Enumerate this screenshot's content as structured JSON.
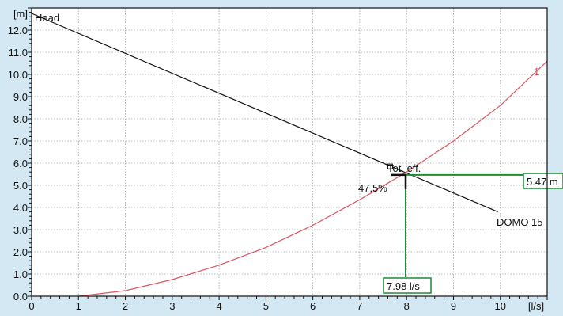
{
  "chart_data": {
    "type": "line",
    "xlabel": "[l/s]",
    "ylabel": "[m]",
    "xlim": [
      0,
      11
    ],
    "ylim": [
      0,
      13
    ],
    "x_ticks": [
      "0",
      "1",
      "2",
      "3",
      "4",
      "5",
      "6",
      "7",
      "8",
      "9",
      "10",
      "[l/s]"
    ],
    "y_ticks": [
      "0.0",
      "1.0",
      "2.0",
      "3.0",
      "4.0",
      "5.0",
      "6.0",
      "7.0",
      "8.0",
      "9.0",
      "10.0",
      "11.0",
      "12.0",
      "[m]"
    ],
    "grid": true,
    "series": [
      {
        "name": "Head",
        "color": "#111111",
        "x": [
          0,
          9.95
        ],
        "y": [
          12.75,
          3.8
        ]
      },
      {
        "name": "1",
        "color": "#d9555f",
        "x": [
          1.0,
          2.0,
          3.0,
          4.0,
          5.0,
          6.0,
          7.0,
          8.0,
          9.0,
          10.0,
          11.0
        ],
        "y": [
          0.0,
          0.25,
          0.75,
          1.4,
          2.2,
          3.2,
          4.35,
          5.6,
          7.0,
          8.6,
          10.6
        ]
      }
    ],
    "labels": {
      "head": "Head",
      "system_curve": "1",
      "pump": "DOMO 15",
      "efficiency": "Tot. eff.",
      "efficiency_value": "47.5%"
    },
    "operating_point": {
      "x": 7.98,
      "y": 5.47,
      "x_label": "7.98 l/s",
      "y_label": "5.47 m",
      "color": "#1e8c36"
    },
    "efficiency_marker": {
      "x": 7.65,
      "y": 5.85
    }
  }
}
